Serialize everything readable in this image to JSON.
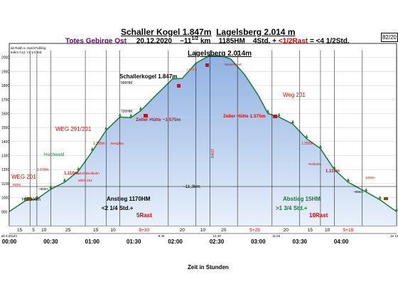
{
  "header": {
    "title_peak1": "Schaller Kogel 1.847m",
    "title_peak2": "Lagelsberg 2.014 m",
    "area": "Totes Gebirge Ost",
    "date": "20.12.2020",
    "distance": "~11",
    "distance_frac": "1/2",
    "distance_unit": "km",
    "ascent": "1185HM",
    "duration": "4Std. +",
    "rest": "<1/2Rast",
    "total": "= <4 1/2Std.",
    "badge": "82/20"
  },
  "start_note": [
    "ab Raith ü. Hard-Paßling",
    "94km A12, <1 1/4 Std."
  ],
  "chart_data": {
    "type": "area",
    "title": "Lagelsberg 2.014m",
    "xlabel": "Zeit in Stunden",
    "x_ticks": [
      "00:00",
      "00:30",
      "01:00",
      "01:30",
      "02:00",
      "02:30",
      "03:00",
      "03:30",
      "04:00"
    ],
    "x_range_min": [
      0,
      280
    ],
    "profile": [
      {
        "t": 0,
        "h": 900
      },
      {
        "t": 12,
        "h": 980
      },
      {
        "t": 20,
        "h": 990
      },
      {
        "t": 30,
        "h": 1060
      },
      {
        "t": 40,
        "h": 1110
      },
      {
        "t": 50,
        "h": 1190
      },
      {
        "t": 60,
        "h": 1330
      },
      {
        "t": 70,
        "h": 1480
      },
      {
        "t": 80,
        "h": 1575
      },
      {
        "t": 88,
        "h": 1570
      },
      {
        "t": 95,
        "h": 1620
      },
      {
        "t": 105,
        "h": 1720
      },
      {
        "t": 118,
        "h": 1847
      },
      {
        "t": 125,
        "h": 1850
      },
      {
        "t": 135,
        "h": 1960
      },
      {
        "t": 145,
        "h": 2014
      },
      {
        "t": 152,
        "h": 2014
      },
      {
        "t": 160,
        "h": 1990
      },
      {
        "t": 170,
        "h": 1880
      },
      {
        "t": 180,
        "h": 1730
      },
      {
        "t": 187,
        "h": 1600
      },
      {
        "t": 195,
        "h": 1575
      },
      {
        "t": 205,
        "h": 1525
      },
      {
        "t": 215,
        "h": 1420
      },
      {
        "t": 225,
        "h": 1350
      },
      {
        "t": 235,
        "h": 1200
      },
      {
        "t": 245,
        "h": 1110
      },
      {
        "t": 258,
        "h": 1040
      },
      {
        "t": 268,
        "h": 985
      },
      {
        "t": 280,
        "h": 900
      }
    ],
    "segment_minutes": [
      "15",
      "5",
      "10",
      "25",
      "15",
      "10",
      "5+30",
      "20",
      "10",
      "20",
      "5+25",
      "20",
      "15",
      "10",
      "5+15"
    ],
    "segment_minutes_color": [
      "#000",
      "#000",
      "#000",
      "#000",
      "#000",
      "#000",
      "#e00000",
      "#000",
      "#000",
      "#000",
      "#e00000",
      "#000",
      "#000",
      "#000",
      "#e00000"
    ],
    "time_marks": [
      "ab 6:25Uhr",
      "8:45",
      "10:40",
      "11:25",
      "an 12:55"
    ],
    "ascent_box": {
      "l1": "Anstieg 1170HM",
      "l2": "<2 1/4 Std.+",
      "l3": "5Rast"
    },
    "descent_box": {
      "l1": "Abstieg  15HM",
      "l2": ">1 3/4 Std.+",
      "l3": "10Rast"
    },
    "span_label": "~11,3km",
    "rest_vertical": "RAST",
    "labels": {
      "peak1": "Schallerkogel 1.847m",
      "peak1_sub": "996HM",
      "hut_up": "Zeller Hütte ~1.575m",
      "hut_down": "Zeller Hütte 1.575m",
      "hut_720": "720HM",
      "weg291": "WEG 291/201",
      "weg201_left": "WEG 201",
      "weg201_right": "Weg 201",
      "hochwald": "Hochwald",
      "m1110_left": "1.110m",
      "m1110_right": "1.110m",
      "m1070": "1.070m",
      "m1355_left": "1.355m",
      "m1355_right": "1.355m",
      "m1950": "1.950m",
      "m985_left": "~985m",
      "m985_right": "~985m",
      "hof": "Hof 900m",
      "m950": "950m",
      "m1000": "1000m",
      "warterkreuz": "Warterkreuz",
      "weg291_small": "WEG 291",
      "materialseil": "Materialseilbahn",
      "reitbahn": "Reitbahn",
      "bestplatz": "Bestplatz"
    }
  }
}
